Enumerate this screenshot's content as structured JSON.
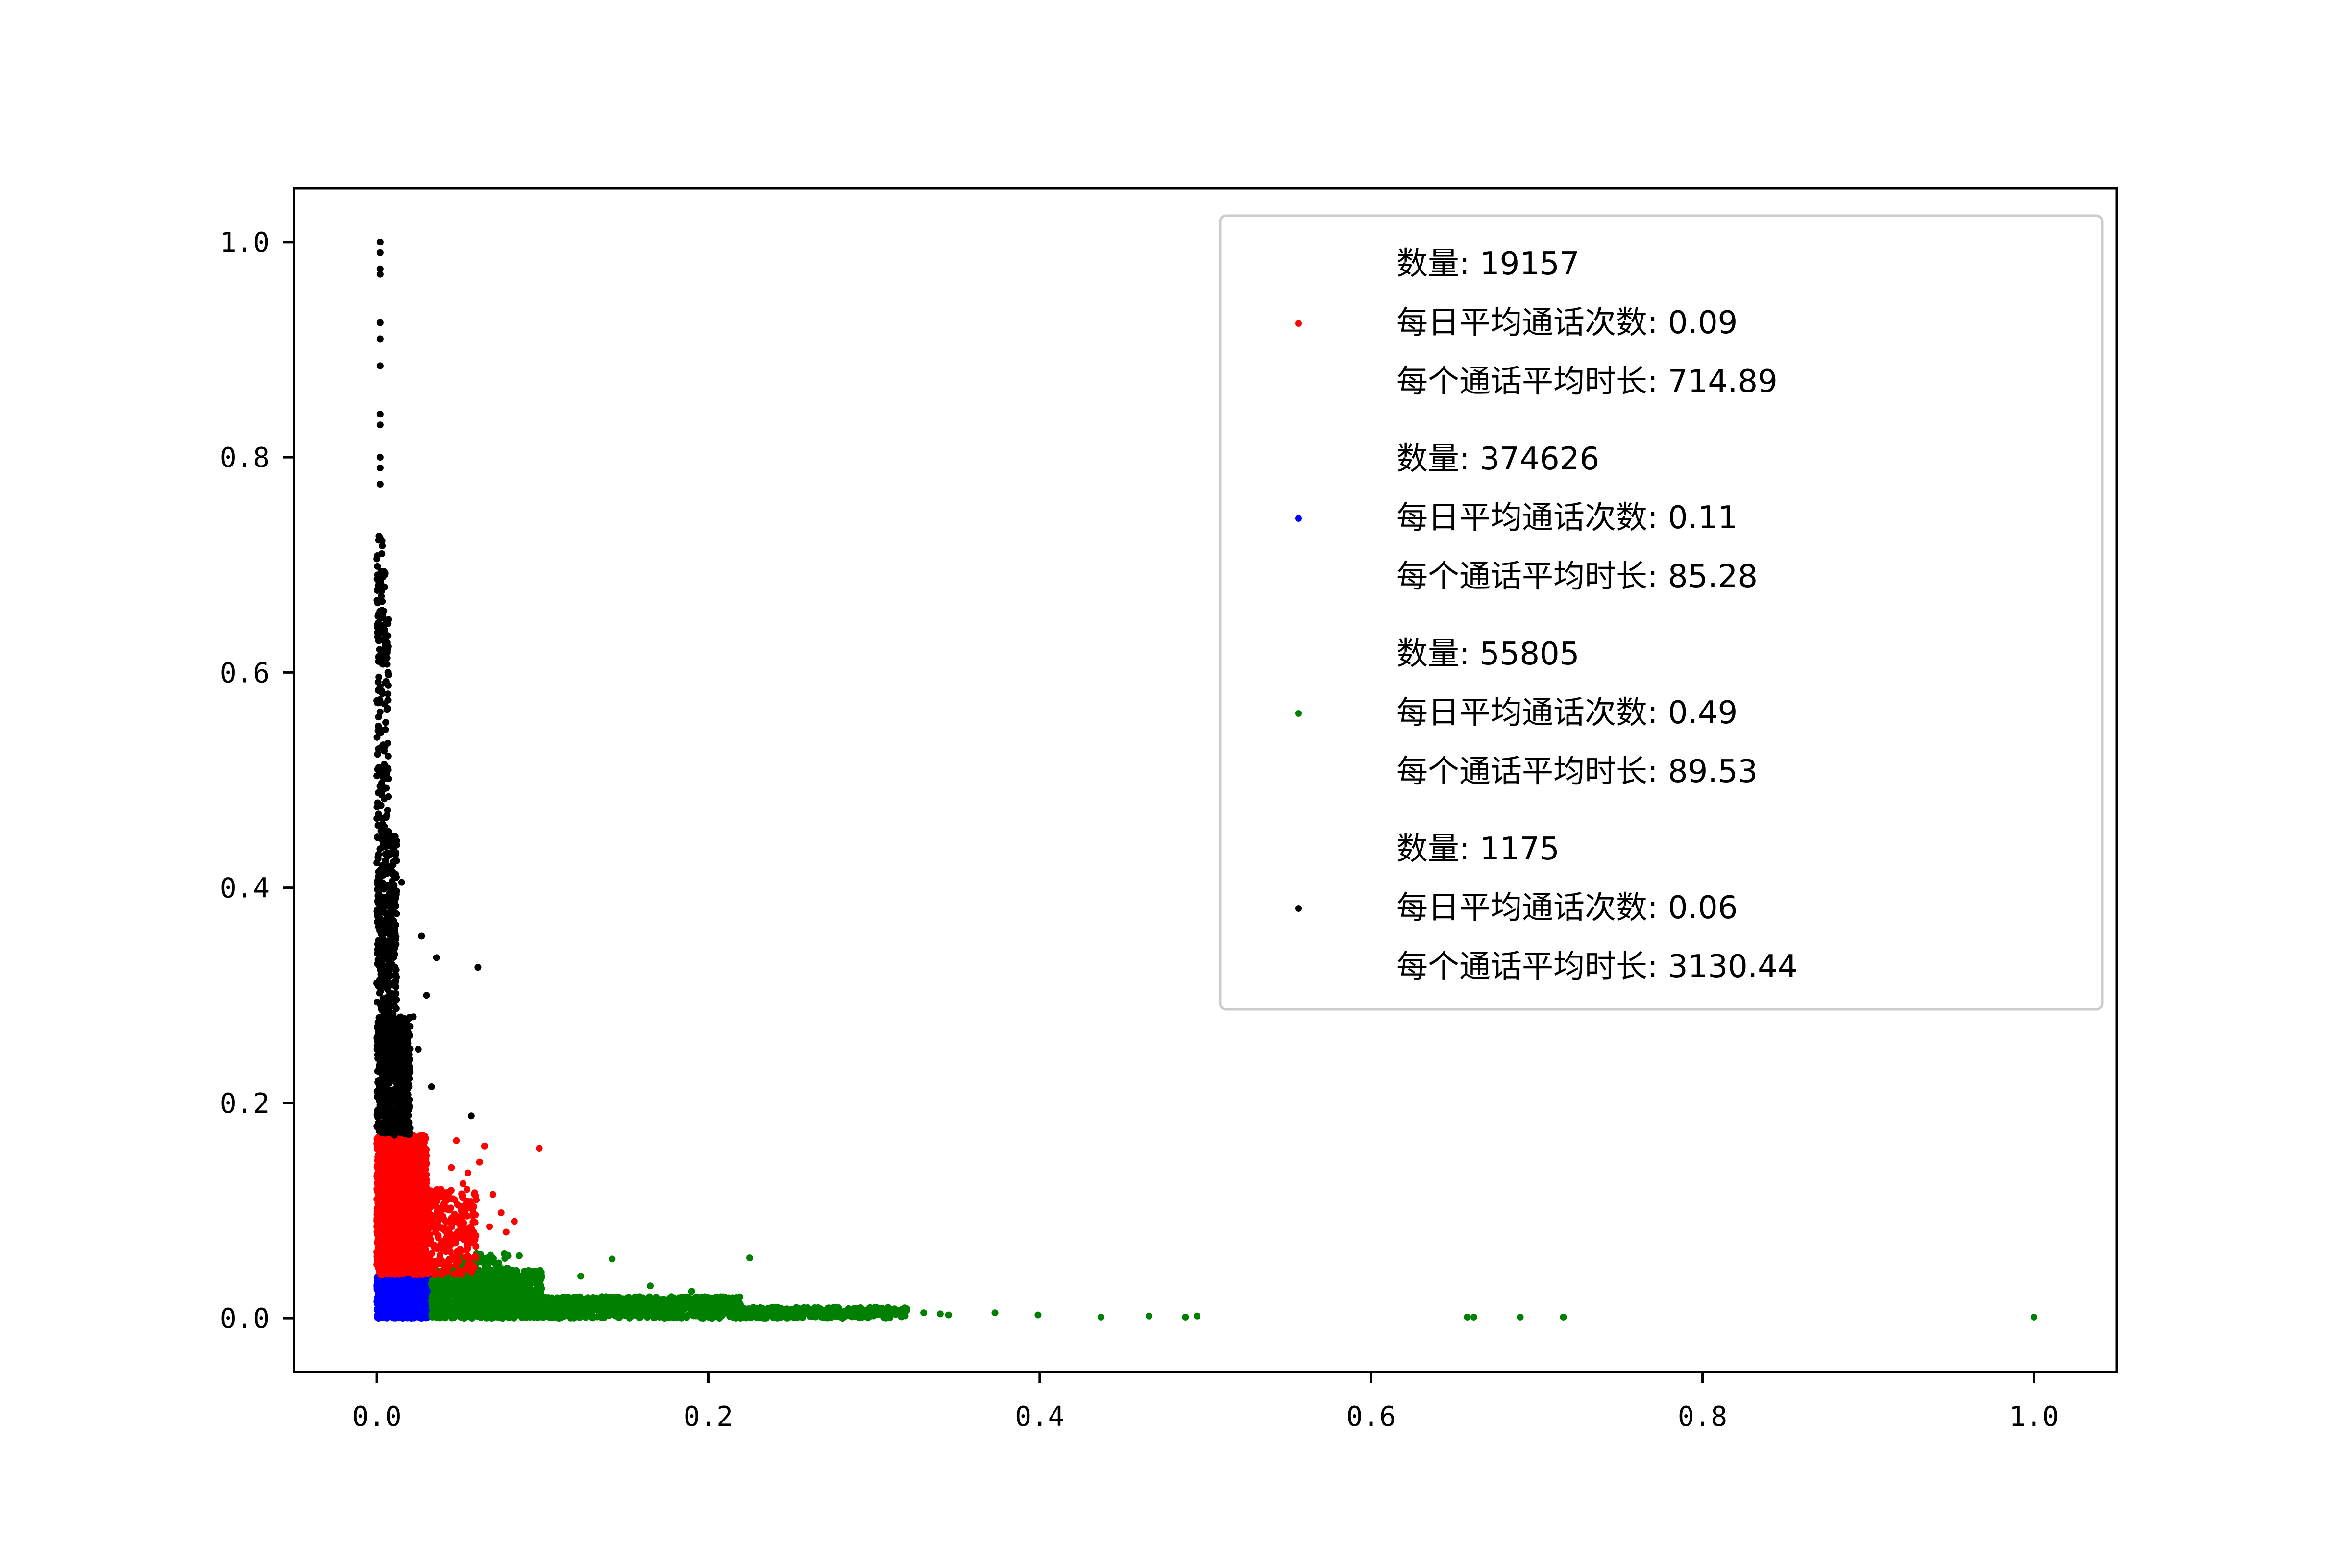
{
  "chart_data": {
    "type": "scatter",
    "title": "",
    "xlabel": "",
    "ylabel": "",
    "xlim": [
      -0.05,
      1.05
    ],
    "ylim": [
      -0.05,
      1.05
    ],
    "x_ticks": [
      "0.0",
      "0.2",
      "0.4",
      "0.6",
      "0.8",
      "1.0"
    ],
    "y_ticks": [
      "0.0",
      "0.2",
      "0.4",
      "0.6",
      "0.8",
      "1.0"
    ],
    "x_tick_values": [
      0.0,
      0.2,
      0.4,
      0.6,
      0.8,
      1.0
    ],
    "y_tick_values": [
      0.0,
      0.2,
      0.4,
      0.6,
      0.8,
      1.0
    ],
    "legend_position": "top-right",
    "series": [
      {
        "name": "cluster-red",
        "color": "#ff0000",
        "legend_lines": [
          "数量: 19157",
          "每日平均通话次数: 0.09",
          "每个通话平均时长: 714.89"
        ],
        "regions": [
          {
            "x": [
              0.0,
              0.03
            ],
            "y": [
              0.04,
              0.17
            ],
            "n": 2200
          },
          {
            "x": [
              0.02,
              0.06
            ],
            "y": [
              0.04,
              0.12
            ],
            "n": 350
          }
        ],
        "points": [
          {
            "x": 0.048,
            "y": 0.165
          },
          {
            "x": 0.062,
            "y": 0.145
          },
          {
            "x": 0.098,
            "y": 0.158
          },
          {
            "x": 0.065,
            "y": 0.16
          },
          {
            "x": 0.055,
            "y": 0.135
          },
          {
            "x": 0.07,
            "y": 0.115
          },
          {
            "x": 0.058,
            "y": 0.095
          },
          {
            "x": 0.075,
            "y": 0.098
          },
          {
            "x": 0.068,
            "y": 0.085
          },
          {
            "x": 0.078,
            "y": 0.08
          },
          {
            "x": 0.052,
            "y": 0.125
          },
          {
            "x": 0.045,
            "y": 0.14
          },
          {
            "x": 0.06,
            "y": 0.11
          },
          {
            "x": 0.083,
            "y": 0.09
          }
        ]
      },
      {
        "name": "cluster-blue",
        "color": "#0000ff",
        "legend_lines": [
          "数量: 374626",
          "每日平均通话次数: 0.11",
          "每个通话平均时长: 85.28"
        ],
        "regions": [
          {
            "x": [
              0.0,
              0.033
            ],
            "y": [
              0.0,
              0.04
            ],
            "n": 1400
          }
        ],
        "points": []
      },
      {
        "name": "cluster-green",
        "color": "#008000",
        "legend_lines": [
          "数量: 55805",
          "每日平均通话次数: 0.49",
          "每个通话平均时长: 89.53"
        ],
        "regions": [
          {
            "x": [
              0.033,
              0.1
            ],
            "y": [
              0.0,
              0.045
            ],
            "n": 1200
          },
          {
            "x": [
              0.1,
              0.22
            ],
            "y": [
              0.0,
              0.02
            ],
            "n": 900
          },
          {
            "x": [
              0.22,
              0.32
            ],
            "y": [
              0.0,
              0.01
            ],
            "n": 350
          },
          {
            "x": [
              0.04,
              0.08
            ],
            "y": [
              0.0,
              0.06
            ],
            "n": 200
          }
        ],
        "points": [
          {
            "x": 0.086,
            "y": 0.058
          },
          {
            "x": 0.142,
            "y": 0.055
          },
          {
            "x": 0.225,
            "y": 0.056
          },
          {
            "x": 0.123,
            "y": 0.039
          },
          {
            "x": 0.165,
            "y": 0.03
          },
          {
            "x": 0.19,
            "y": 0.025
          },
          {
            "x": 0.33,
            "y": 0.005
          },
          {
            "x": 0.34,
            "y": 0.004
          },
          {
            "x": 0.345,
            "y": 0.003
          },
          {
            "x": 0.373,
            "y": 0.005
          },
          {
            "x": 0.399,
            "y": 0.003
          },
          {
            "x": 0.437,
            "y": 0.001
          },
          {
            "x": 0.466,
            "y": 0.002
          },
          {
            "x": 0.488,
            "y": 0.001
          },
          {
            "x": 0.495,
            "y": 0.002
          },
          {
            "x": 0.658,
            "y": 0.001
          },
          {
            "x": 0.662,
            "y": 0.001
          },
          {
            "x": 0.69,
            "y": 0.001
          },
          {
            "x": 0.716,
            "y": 0.001
          },
          {
            "x": 1.0,
            "y": 0.001
          }
        ]
      },
      {
        "name": "cluster-black",
        "color": "#000000",
        "legend_lines": [
          "数量: 1175",
          "每日平均通话次数: 0.06",
          "每个通话平均时长: 3130.44"
        ],
        "regions": [
          {
            "x": [
              0.0,
              0.02
            ],
            "y": [
              0.17,
              0.28
            ],
            "n": 650
          },
          {
            "x": [
              0.0,
              0.012
            ],
            "y": [
              0.28,
              0.45
            ],
            "n": 350
          },
          {
            "x": [
              0.0,
              0.007
            ],
            "y": [
              0.45,
              0.65
            ],
            "n": 140
          },
          {
            "x": [
              0.0,
              0.005
            ],
            "y": [
              0.65,
              0.73
            ],
            "n": 40
          }
        ],
        "points": [
          {
            "x": 0.002,
            "y": 1.0
          },
          {
            "x": 0.002,
            "y": 0.99
          },
          {
            "x": 0.002,
            "y": 0.975
          },
          {
            "x": 0.002,
            "y": 0.97
          },
          {
            "x": 0.002,
            "y": 0.925
          },
          {
            "x": 0.002,
            "y": 0.91
          },
          {
            "x": 0.002,
            "y": 0.885
          },
          {
            "x": 0.002,
            "y": 0.84
          },
          {
            "x": 0.002,
            "y": 0.83
          },
          {
            "x": 0.002,
            "y": 0.8
          },
          {
            "x": 0.002,
            "y": 0.79
          },
          {
            "x": 0.002,
            "y": 0.775
          },
          {
            "x": 0.012,
            "y": 0.425
          },
          {
            "x": 0.015,
            "y": 0.405
          },
          {
            "x": 0.027,
            "y": 0.355
          },
          {
            "x": 0.036,
            "y": 0.335
          },
          {
            "x": 0.061,
            "y": 0.326
          },
          {
            "x": 0.025,
            "y": 0.25
          },
          {
            "x": 0.033,
            "y": 0.215
          },
          {
            "x": 0.057,
            "y": 0.188
          },
          {
            "x": 0.03,
            "y": 0.3
          },
          {
            "x": 0.022,
            "y": 0.28
          }
        ]
      }
    ]
  }
}
